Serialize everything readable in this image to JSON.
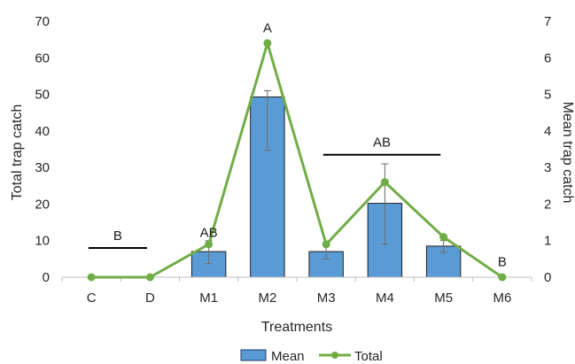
{
  "chart_data": {
    "type": "bar",
    "categories": [
      "C",
      "D",
      "M1",
      "M2",
      "M3",
      "M4",
      "M5",
      "M6"
    ],
    "xlabel": "Treatments",
    "ylabel_left": "Total trap catch",
    "ylabel_right": "Mean trap catch",
    "ylim_left": [
      0,
      70
    ],
    "yticks_left": [
      "0",
      "10",
      "20",
      "30",
      "40",
      "50",
      "60",
      "70"
    ],
    "ylim_right": [
      0,
      7
    ],
    "yticks_right": [
      "0",
      "1",
      "2",
      "3",
      "4",
      "5",
      "6",
      "7"
    ],
    "grid": false,
    "legend_position": "bottom",
    "series": [
      {
        "name": "Mean",
        "kind": "bar",
        "axis": "right",
        "color": "#5b9bd5",
        "values": [
          0,
          0,
          0.7,
          4.93,
          0.7,
          2.02,
          0.85,
          0
        ],
        "error_low": [
          0,
          0,
          0.37,
          3.47,
          0.5,
          0.9,
          0.68,
          0
        ],
        "error_high": [
          0,
          0,
          1.0,
          5.1,
          0.9,
          3.1,
          1.0,
          0
        ]
      },
      {
        "name": "Total",
        "kind": "line",
        "axis": "left",
        "color": "#70ad47",
        "values": [
          0,
          0,
          9,
          64,
          9,
          26,
          11,
          0
        ]
      }
    ],
    "significance": [
      {
        "text": "B",
        "from": "C",
        "to": "D",
        "level": 8,
        "has_line": true
      },
      {
        "text": "AB",
        "at": "M1",
        "level": 11,
        "has_line": false
      },
      {
        "text": "A",
        "at": "M2",
        "level": 67,
        "has_line": false
      },
      {
        "text": "AB",
        "from": "M3",
        "to": "M5",
        "level": 33.5,
        "has_line": true
      },
      {
        "text": "B",
        "at": "M6",
        "level": 3,
        "has_line": false
      }
    ]
  }
}
